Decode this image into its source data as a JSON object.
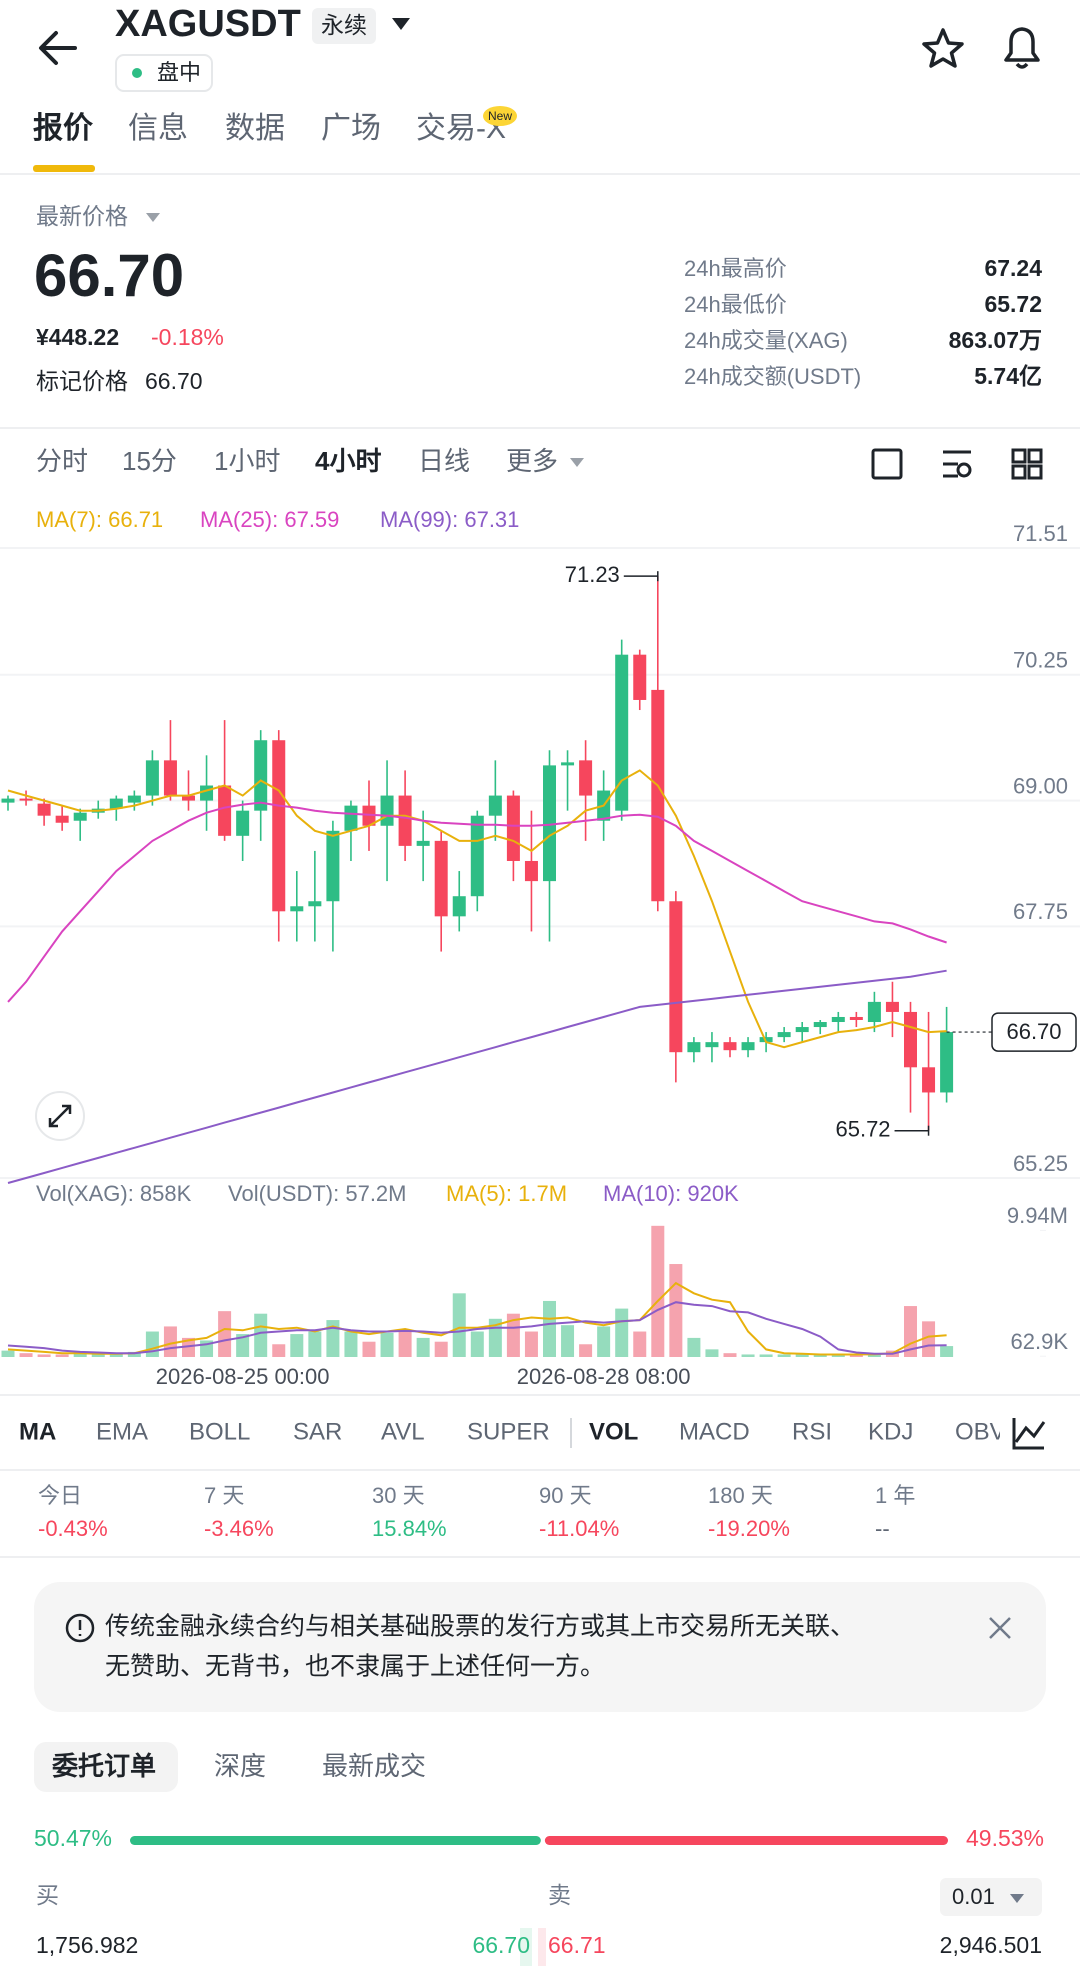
{
  "header": {
    "title": "XAGUSDT",
    "badge": "永续",
    "status": "盘中"
  },
  "tabs": [
    "报价",
    "信息",
    "数据",
    "广场",
    "交易-X"
  ],
  "tab_badge": "New",
  "price": {
    "label": "最新价格",
    "last": "66.70",
    "cny": "¥448.22",
    "change": "-0.18%",
    "mark_label": "标记价格",
    "mark": "66.70"
  },
  "stats": [
    [
      "24h最高价",
      "67.24"
    ],
    [
      "24h最低价",
      "65.72"
    ],
    [
      "24h成交量(XAG)",
      "863.07万"
    ],
    [
      "24h成交额(USDT)",
      "5.74亿"
    ]
  ],
  "intervals": [
    "分时",
    "15分",
    "1小时",
    "4小时",
    "日线",
    "更多"
  ],
  "chart_data": {
    "type": "candlestick",
    "categories": [
      null,
      null,
      null,
      null,
      null,
      null,
      null,
      null,
      null,
      null,
      null,
      null,
      null,
      "2026-08-25 00:00",
      null,
      null,
      null,
      null,
      null,
      null,
      null,
      null,
      null,
      null,
      null,
      null,
      null,
      null,
      null,
      null,
      null,
      null,
      null,
      "2026-08-28 08:00",
      null,
      null,
      null,
      null,
      null,
      null,
      null,
      null,
      null,
      null,
      null,
      null,
      null,
      null,
      null,
      null,
      null,
      null,
      null
    ],
    "open": [
      68.98,
      69.02,
      68.97,
      68.85,
      68.8,
      68.88,
      68.92,
      68.98,
      69.05,
      69.4,
      69.05,
      69.0,
      69.15,
      68.65,
      68.9,
      69.6,
      67.9,
      67.95,
      68.0,
      68.7,
      68.95,
      68.75,
      69.05,
      68.55,
      68.6,
      67.85,
      68.05,
      68.85,
      69.05,
      68.4,
      68.2,
      69.35,
      69.4,
      68.8,
      68.9,
      70.45,
      70.1,
      68.0,
      66.5,
      66.55,
      66.6,
      66.52,
      66.6,
      66.65,
      66.7,
      66.75,
      66.8,
      66.85,
      66.8,
      67.0,
      66.9,
      66.35,
      66.1
    ],
    "high": [
      69.05,
      69.1,
      69.02,
      68.95,
      68.92,
      69.0,
      69.05,
      69.1,
      69.5,
      69.8,
      69.3,
      69.45,
      69.8,
      69.0,
      69.7,
      69.7,
      68.3,
      68.5,
      68.8,
      69.0,
      69.2,
      69.4,
      69.3,
      68.9,
      68.7,
      68.3,
      68.9,
      69.4,
      69.1,
      68.9,
      69.5,
      69.5,
      69.6,
      69.3,
      70.6,
      70.5,
      71.23,
      68.1,
      66.65,
      66.7,
      66.65,
      66.65,
      66.7,
      66.75,
      66.8,
      66.82,
      66.9,
      66.9,
      67.1,
      67.2,
      67.0,
      66.9,
      66.95
    ],
    "low": [
      68.9,
      68.95,
      68.75,
      68.7,
      68.6,
      68.82,
      68.8,
      68.9,
      68.95,
      69.0,
      68.9,
      68.7,
      68.6,
      68.4,
      68.6,
      67.6,
      67.6,
      67.6,
      67.5,
      68.4,
      68.5,
      68.2,
      68.4,
      68.2,
      67.5,
      67.7,
      67.9,
      68.6,
      68.2,
      67.7,
      67.6,
      68.9,
      68.6,
      68.6,
      68.8,
      69.9,
      67.9,
      66.2,
      66.4,
      66.4,
      66.45,
      66.45,
      66.5,
      66.6,
      66.6,
      66.68,
      66.7,
      66.75,
      66.7,
      66.65,
      65.9,
      65.72,
      66.0
    ],
    "close": [
      69.02,
      69.0,
      68.85,
      68.78,
      68.88,
      68.92,
      69.02,
      69.05,
      69.4,
      69.05,
      69.0,
      69.15,
      68.65,
      68.9,
      69.6,
      67.9,
      67.95,
      68.0,
      68.7,
      68.95,
      68.75,
      69.05,
      68.55,
      68.6,
      67.85,
      68.05,
      68.85,
      69.05,
      68.4,
      68.2,
      69.35,
      69.38,
      69.05,
      69.1,
      70.45,
      70.0,
      68.0,
      66.5,
      66.6,
      66.6,
      66.52,
      66.6,
      66.65,
      66.7,
      66.75,
      66.8,
      66.85,
      66.82,
      67.0,
      66.9,
      66.35,
      66.1,
      66.7
    ],
    "up_color": "#2ebd85",
    "down_color": "#f6465d",
    "series": [
      {
        "name": "MA(7): 66.71",
        "color": "#e8b10c",
        "values": [
          69.1,
          69.05,
          69.0,
          68.95,
          68.9,
          68.9,
          68.92,
          68.95,
          69.0,
          69.05,
          69.05,
          69.1,
          69.15,
          69.05,
          69.2,
          69.1,
          68.85,
          68.7,
          68.65,
          68.7,
          68.75,
          68.85,
          68.85,
          68.8,
          68.7,
          68.6,
          68.6,
          68.65,
          68.6,
          68.5,
          68.65,
          68.75,
          68.9,
          68.95,
          69.2,
          69.3,
          69.15,
          68.85,
          68.45,
          68.0,
          67.5,
          67.0,
          66.6,
          66.55,
          66.6,
          66.65,
          66.7,
          66.72,
          66.75,
          66.8,
          66.75,
          66.7,
          66.71
        ]
      },
      {
        "name": "MA(25): 67.59",
        "color": "#d944c0",
        "values": [
          67.0,
          67.2,
          67.45,
          67.7,
          67.9,
          68.1,
          68.3,
          68.45,
          68.6,
          68.7,
          68.8,
          68.88,
          68.93,
          68.96,
          68.98,
          68.95,
          68.93,
          68.9,
          68.88,
          68.87,
          68.86,
          68.85,
          68.83,
          68.8,
          68.78,
          68.77,
          68.76,
          68.76,
          68.75,
          68.75,
          68.76,
          68.78,
          68.8,
          68.82,
          68.85,
          68.86,
          68.84,
          68.75,
          68.6,
          68.5,
          68.4,
          68.3,
          68.2,
          68.1,
          68.0,
          67.95,
          67.9,
          67.85,
          67.8,
          67.78,
          67.72,
          67.65,
          67.59
        ]
      },
      {
        "name": "MA(99): 67.31",
        "color": "#8b5cc7",
        "values": [
          65.2,
          65.25,
          65.3,
          65.35,
          65.4,
          65.45,
          65.5,
          65.55,
          65.6,
          65.65,
          65.7,
          65.75,
          65.8,
          65.85,
          65.9,
          65.95,
          66.0,
          66.05,
          66.1,
          66.15,
          66.2,
          66.25,
          66.3,
          66.35,
          66.4,
          66.45,
          66.5,
          66.55,
          66.6,
          66.65,
          66.7,
          66.75,
          66.8,
          66.85,
          66.9,
          66.95,
          66.97,
          66.99,
          67.01,
          67.03,
          67.05,
          67.07,
          67.09,
          67.11,
          67.13,
          67.15,
          67.17,
          67.19,
          67.21,
          67.23,
          67.25,
          67.28,
          67.31
        ]
      }
    ],
    "ylim": [
      65.25,
      71.51
    ],
    "yticks": [
      65.25,
      67.75,
      {
        "value": 69,
        "label": "69.00"
      },
      70.25,
      71.51
    ],
    "annotations": [
      {
        "label": "71.23",
        "value": 71.23
      },
      {
        "label": "65.72",
        "value": 65.72
      }
    ],
    "last_price": {
      "value": 66.7,
      "label": "66.70"
    },
    "volume": {
      "labels": [
        "Vol(XAG): 858K",
        "Vol(USDT): 57.2M"
      ],
      "values": [
        0.5,
        0.3,
        0.2,
        0.2,
        0.3,
        0.2,
        0.3,
        0.4,
        2.0,
        2.4,
        1.5,
        1.3,
        3.6,
        1.8,
        3.4,
        1.0,
        1.8,
        2.0,
        2.9,
        2.0,
        1.2,
        1.9,
        2.0,
        1.5,
        1.2,
        5.0,
        2.0,
        3.0,
        3.4,
        2.0,
        4.4,
        2.5,
        1.0,
        2.4,
        3.8,
        2.0,
        10.3,
        7.3,
        1.5,
        0.6,
        0.3,
        0.2,
        0.2,
        0.2,
        0.2,
        0.2,
        0.2,
        0.2,
        0.3,
        0.5,
        4.0,
        2.8,
        0.858
      ],
      "up_color": "#95dcbd",
      "down_color": "#f5a3ae",
      "ylim": [
        0,
        10.6
      ],
      "yticks": [
        {
          "value": 0.0629,
          "label": "62.9K"
        },
        {
          "value": 9.94,
          "label": "9.94M"
        }
      ],
      "series": [
        {
          "name": "MA(5): 1.7M",
          "color": "#e8b10c",
          "values": [
            0.6,
            0.5,
            0.4,
            0.3,
            0.3,
            0.25,
            0.25,
            0.3,
            0.65,
            1.05,
            1.3,
            1.5,
            2.2,
            2.1,
            2.4,
            2.2,
            2.3,
            2.0,
            2.4,
            2.0,
            1.8,
            2.0,
            2.2,
            1.9,
            1.7,
            2.3,
            2.3,
            2.5,
            2.9,
            3.1,
            3.0,
            3.1,
            2.7,
            2.5,
            2.8,
            2.9,
            4.4,
            5.8,
            5.0,
            4.5,
            4.3,
            2.0,
            0.6,
            0.3,
            0.25,
            0.2,
            0.2,
            0.2,
            0.22,
            0.3,
            1.05,
            1.6,
            1.7
          ]
        },
        {
          "name": "MA(10): 920K",
          "color": "#8b5cc7",
          "values": [
            0.9,
            0.8,
            0.7,
            0.5,
            0.4,
            0.35,
            0.3,
            0.3,
            0.45,
            0.7,
            0.85,
            1.0,
            1.3,
            1.55,
            1.9,
            2.0,
            2.1,
            2.1,
            2.3,
            2.1,
            2.0,
            2.0,
            2.05,
            2.0,
            1.9,
            2.0,
            2.2,
            2.3,
            2.3,
            2.4,
            2.6,
            2.7,
            2.8,
            2.7,
            2.8,
            2.9,
            3.7,
            4.3,
            4.1,
            4.0,
            3.6,
            3.5,
            3.0,
            2.6,
            2.2,
            1.6,
            0.6,
            0.35,
            0.25,
            0.25,
            0.6,
            0.9,
            0.92
          ]
        }
      ]
    }
  },
  "indicators": [
    "MA",
    "EMA",
    "BOLL",
    "SAR",
    "AVL",
    "SUPER",
    "VOL",
    "MACD",
    "RSI",
    "KDJ",
    "OBV"
  ],
  "performance": [
    [
      "今日",
      "-0.43%"
    ],
    [
      "7 天",
      "-3.46%"
    ],
    [
      "30 天",
      "15.84%"
    ],
    [
      "90 天",
      "-11.04%"
    ],
    [
      "180 天",
      "-19.20%"
    ],
    [
      "1 年",
      "--"
    ]
  ],
  "notice": [
    "传统金融永续合约与相关基础股票的发行方或其上市交易所无关联、",
    "无赞助、无背书，也不隶属于上述任何一方。"
  ],
  "order_tabs": [
    "委托订单",
    "深度",
    "最新成交"
  ],
  "order_book": {
    "buy_ratio": {
      "value": 50.47,
      "label": "50.47%"
    },
    "sell_ratio": {
      "value": 49.53,
      "label": "49.53%"
    },
    "buy_label": "买",
    "sell_label": "卖",
    "precision": "0.01",
    "bid_qty": "1,756.982",
    "bid_price": "66.70",
    "ask_price": "66.71",
    "ask_qty": "2,946.501"
  }
}
